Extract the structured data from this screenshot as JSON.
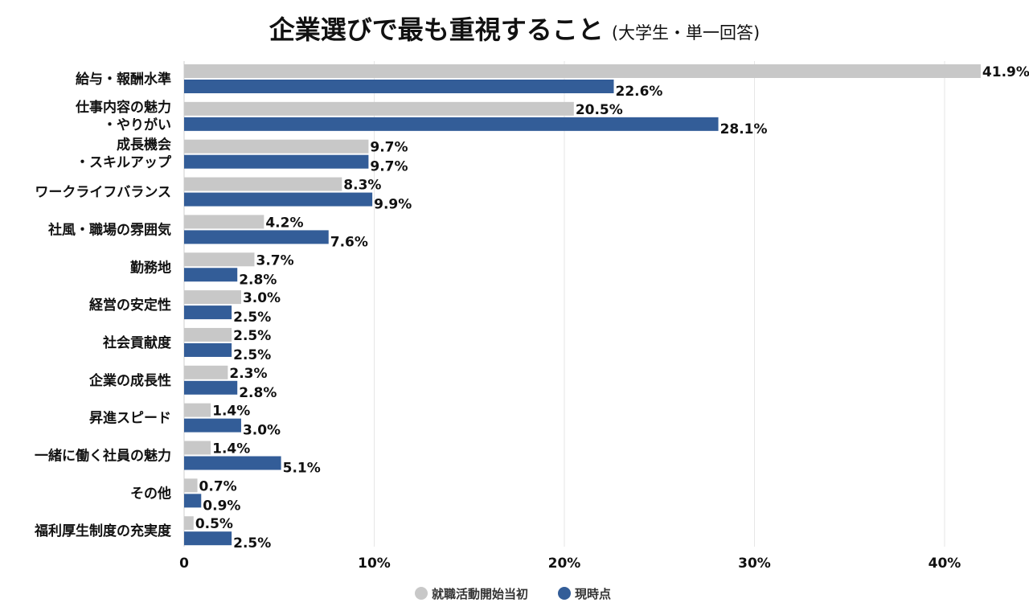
{
  "chart_data": {
    "type": "bar",
    "orientation": "horizontal",
    "title": "企業選びで最も重視すること",
    "subtitle": "(大学生・単一回答)",
    "categories": [
      [
        "給与・報酬水準"
      ],
      [
        "仕事内容の魅力",
        "・やりがい"
      ],
      [
        "成長機会",
        "・スキルアップ"
      ],
      [
        "ワークライフバランス"
      ],
      [
        "社風・職場の雰囲気"
      ],
      [
        "勤務地"
      ],
      [
        "経営の安定性"
      ],
      [
        "社会貢献度"
      ],
      [
        "企業の成長性"
      ],
      [
        "昇進スピード"
      ],
      [
        "一緒に働く社員の魅力"
      ],
      [
        "その他"
      ],
      [
        "福利厚生制度の充実度"
      ]
    ],
    "series": [
      {
        "name": "就職活動開始当初",
        "color": "#c8c8c8",
        "values": [
          41.9,
          20.5,
          9.7,
          8.3,
          4.2,
          3.7,
          3.0,
          2.5,
          2.3,
          1.4,
          1.4,
          0.7,
          0.5
        ],
        "labels": [
          "41.9%",
          "20.5%",
          "9.7%",
          "8.3%",
          "4.2%",
          "3.7%",
          "3.0%",
          "2.5%",
          "2.3%",
          "1.4%",
          "1.4%",
          "0.7%",
          "0.5%"
        ]
      },
      {
        "name": "現時点",
        "color": "#335d98",
        "values": [
          22.6,
          28.1,
          9.7,
          9.9,
          7.6,
          2.8,
          2.5,
          2.5,
          2.8,
          3.0,
          5.1,
          0.9,
          2.5
        ],
        "labels": [
          "22.6%",
          "28.1%",
          "9.7%",
          "9.9%",
          "7.6%",
          "2.8%",
          "2.5%",
          "2.5%",
          "2.8%",
          "3.0%",
          "5.1%",
          "0.9%",
          "2.5%"
        ]
      }
    ],
    "xlim": [
      0,
      42
    ],
    "xticks": [
      0,
      10,
      20,
      30,
      40
    ],
    "xtick_labels": [
      "0",
      "10%",
      "20%",
      "30%",
      "40%"
    ],
    "grid": true,
    "legend_position": "bottom-center",
    "gridline_color": "#e6e6e6"
  }
}
